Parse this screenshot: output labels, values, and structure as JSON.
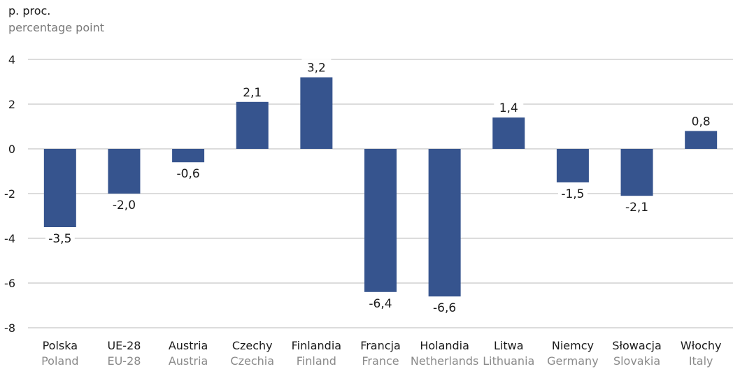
{
  "unit_label_pl": "p. proc.",
  "unit_label_en": "percentage point",
  "colors": {
    "bar": "#36548e",
    "grid": "#b8b8b8",
    "text": "#1a1a1a",
    "subtext": "#8a8a8a"
  },
  "chart_data": {
    "type": "bar",
    "categories_pl": [
      "Polska",
      "UE-28",
      "Austria",
      "Czechy",
      "Finlandia",
      "Francja",
      "Holandia",
      "Litwa",
      "Niemcy",
      "Słowacja",
      "Włochy"
    ],
    "categories": [
      "Poland",
      "EU-28",
      "Austria",
      "Czechia",
      "Finland",
      "France",
      "Netherlands",
      "Lithuania",
      "Germany",
      "Slovakia",
      "Italy"
    ],
    "values": [
      -3.5,
      -2.0,
      -0.6,
      2.1,
      3.2,
      -6.4,
      -6.6,
      1.4,
      -1.5,
      -2.1,
      0.8
    ],
    "data_labels": [
      "-3,5",
      "-2,0",
      "-0,6",
      "2,1",
      "3,2",
      "-6,4",
      "-6,6",
      "1,4",
      "-1,5",
      "-2,1",
      "0,8"
    ],
    "yticks": [
      4,
      2,
      0,
      -2,
      -4,
      -6,
      -8
    ],
    "ytick_labels": [
      "4",
      "2",
      "0",
      "-2",
      "-4",
      "-6",
      "-8"
    ],
    "ylim": [
      -8,
      4
    ],
    "grid": true
  }
}
